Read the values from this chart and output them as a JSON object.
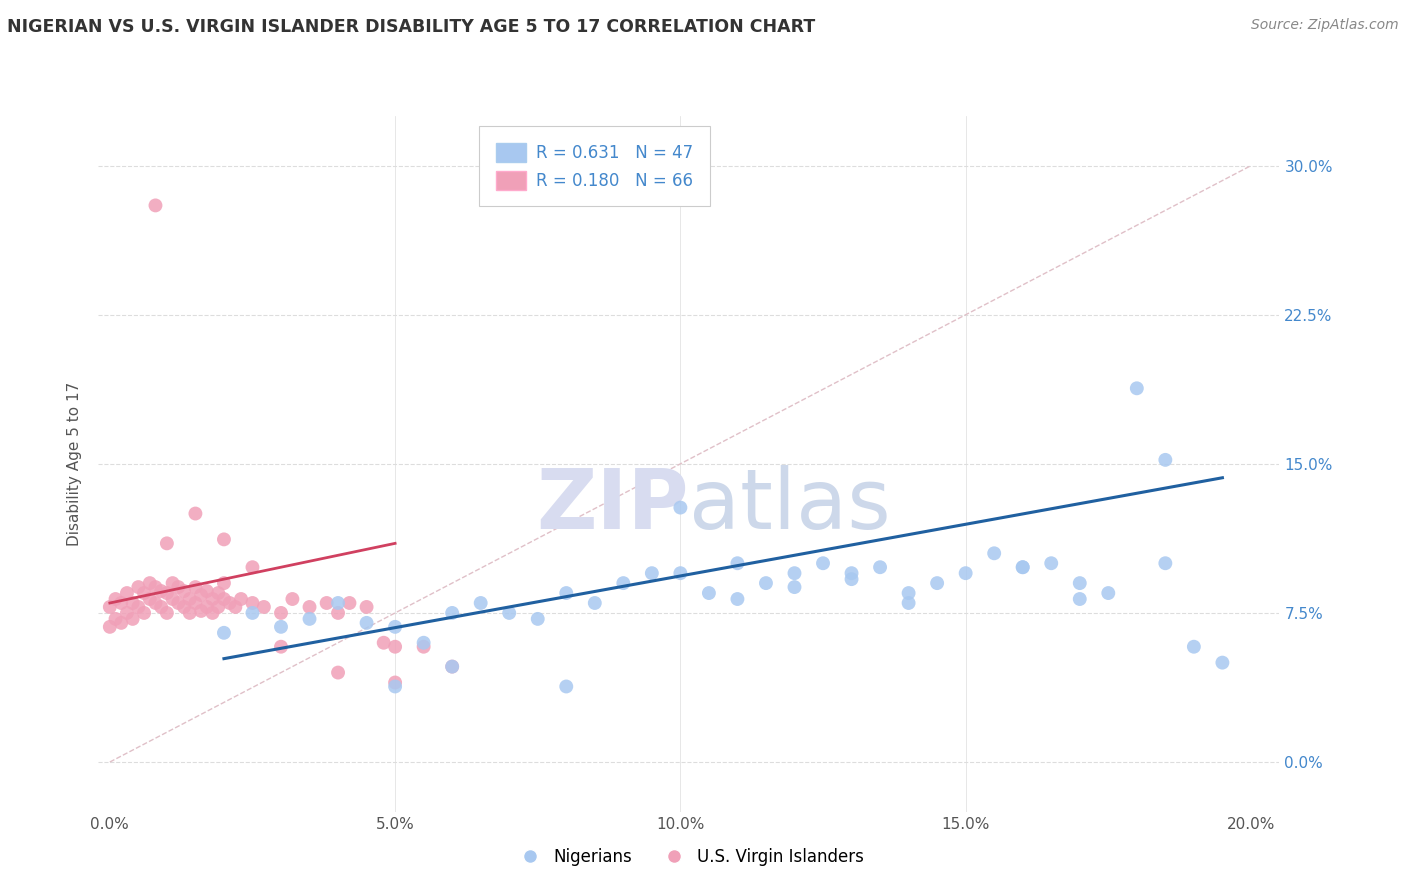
{
  "title": "NIGERIAN VS U.S. VIRGIN ISLANDER DISABILITY AGE 5 TO 17 CORRELATION CHART",
  "source": "Source: ZipAtlas.com",
  "ylabel": "Disability Age 5 to 17",
  "xlim": [
    -0.002,
    0.205
  ],
  "ylim": [
    -0.025,
    0.325
  ],
  "xticks": [
    0.0,
    0.05,
    0.1,
    0.15,
    0.2
  ],
  "yticks": [
    0.0,
    0.075,
    0.15,
    0.225,
    0.3
  ],
  "xtick_labels": [
    "0.0%",
    "5.0%",
    "10.0%",
    "15.0%",
    "20.0%"
  ],
  "ytick_labels": [
    "0.0%",
    "7.5%",
    "15.0%",
    "22.5%",
    "30.0%"
  ],
  "blue_R": "0.631",
  "blue_N": "47",
  "pink_R": "0.180",
  "pink_N": "66",
  "blue_color": "#A8C8F0",
  "pink_color": "#F0A0B8",
  "blue_line_color": "#2060A0",
  "pink_line_color": "#D04060",
  "ref_line_color": "#E0C0C8",
  "watermark_color": "#D8DCF0",
  "blue_label_color": "#4488CC",
  "blue_scatter_x": [
    0.02,
    0.025,
    0.03,
    0.035,
    0.04,
    0.045,
    0.05,
    0.055,
    0.06,
    0.065,
    0.07,
    0.075,
    0.08,
    0.085,
    0.09,
    0.095,
    0.1,
    0.105,
    0.11,
    0.115,
    0.12,
    0.125,
    0.13,
    0.135,
    0.14,
    0.145,
    0.15,
    0.155,
    0.16,
    0.165,
    0.17,
    0.175,
    0.18,
    0.185,
    0.19,
    0.1,
    0.11,
    0.12,
    0.05,
    0.06,
    0.08,
    0.16,
    0.17,
    0.185,
    0.195,
    0.13,
    0.14
  ],
  "blue_scatter_y": [
    0.065,
    0.075,
    0.068,
    0.072,
    0.08,
    0.07,
    0.068,
    0.06,
    0.075,
    0.08,
    0.075,
    0.072,
    0.085,
    0.08,
    0.09,
    0.095,
    0.095,
    0.085,
    0.082,
    0.09,
    0.095,
    0.1,
    0.092,
    0.098,
    0.085,
    0.09,
    0.095,
    0.105,
    0.098,
    0.1,
    0.09,
    0.085,
    0.188,
    0.152,
    0.058,
    0.128,
    0.1,
    0.088,
    0.038,
    0.048,
    0.038,
    0.098,
    0.082,
    0.1,
    0.05,
    0.095,
    0.08
  ],
  "pink_scatter_x": [
    0.0,
    0.0,
    0.001,
    0.001,
    0.002,
    0.002,
    0.003,
    0.003,
    0.004,
    0.004,
    0.005,
    0.005,
    0.006,
    0.006,
    0.007,
    0.007,
    0.008,
    0.008,
    0.009,
    0.009,
    0.01,
    0.01,
    0.011,
    0.011,
    0.012,
    0.012,
    0.013,
    0.013,
    0.014,
    0.014,
    0.015,
    0.015,
    0.016,
    0.016,
    0.017,
    0.017,
    0.018,
    0.018,
    0.019,
    0.019,
    0.02,
    0.02,
    0.021,
    0.022,
    0.023,
    0.025,
    0.027,
    0.03,
    0.032,
    0.035,
    0.038,
    0.04,
    0.042,
    0.045,
    0.048,
    0.05,
    0.055,
    0.06,
    0.008,
    0.015,
    0.02,
    0.025,
    0.01,
    0.03,
    0.04,
    0.05
  ],
  "pink_scatter_y": [
    0.068,
    0.078,
    0.072,
    0.082,
    0.07,
    0.08,
    0.075,
    0.085,
    0.072,
    0.08,
    0.078,
    0.088,
    0.075,
    0.085,
    0.082,
    0.09,
    0.08,
    0.088,
    0.078,
    0.086,
    0.075,
    0.085,
    0.082,
    0.09,
    0.08,
    0.088,
    0.078,
    0.086,
    0.075,
    0.082,
    0.08,
    0.088,
    0.076,
    0.084,
    0.078,
    0.086,
    0.075,
    0.082,
    0.078,
    0.085,
    0.082,
    0.09,
    0.08,
    0.078,
    0.082,
    0.08,
    0.078,
    0.075,
    0.082,
    0.078,
    0.08,
    0.075,
    0.08,
    0.078,
    0.06,
    0.058,
    0.058,
    0.048,
    0.28,
    0.125,
    0.112,
    0.098,
    0.11,
    0.058,
    0.045,
    0.04
  ],
  "blue_regline_x": [
    0.02,
    0.195
  ],
  "blue_regline_y": [
    0.052,
    0.143
  ],
  "pink_regline_x": [
    0.0,
    0.05
  ],
  "pink_regline_y": [
    0.08,
    0.11
  ],
  "ref_line_x": [
    0.0,
    0.2
  ],
  "ref_line_y": [
    0.0,
    0.3
  ]
}
